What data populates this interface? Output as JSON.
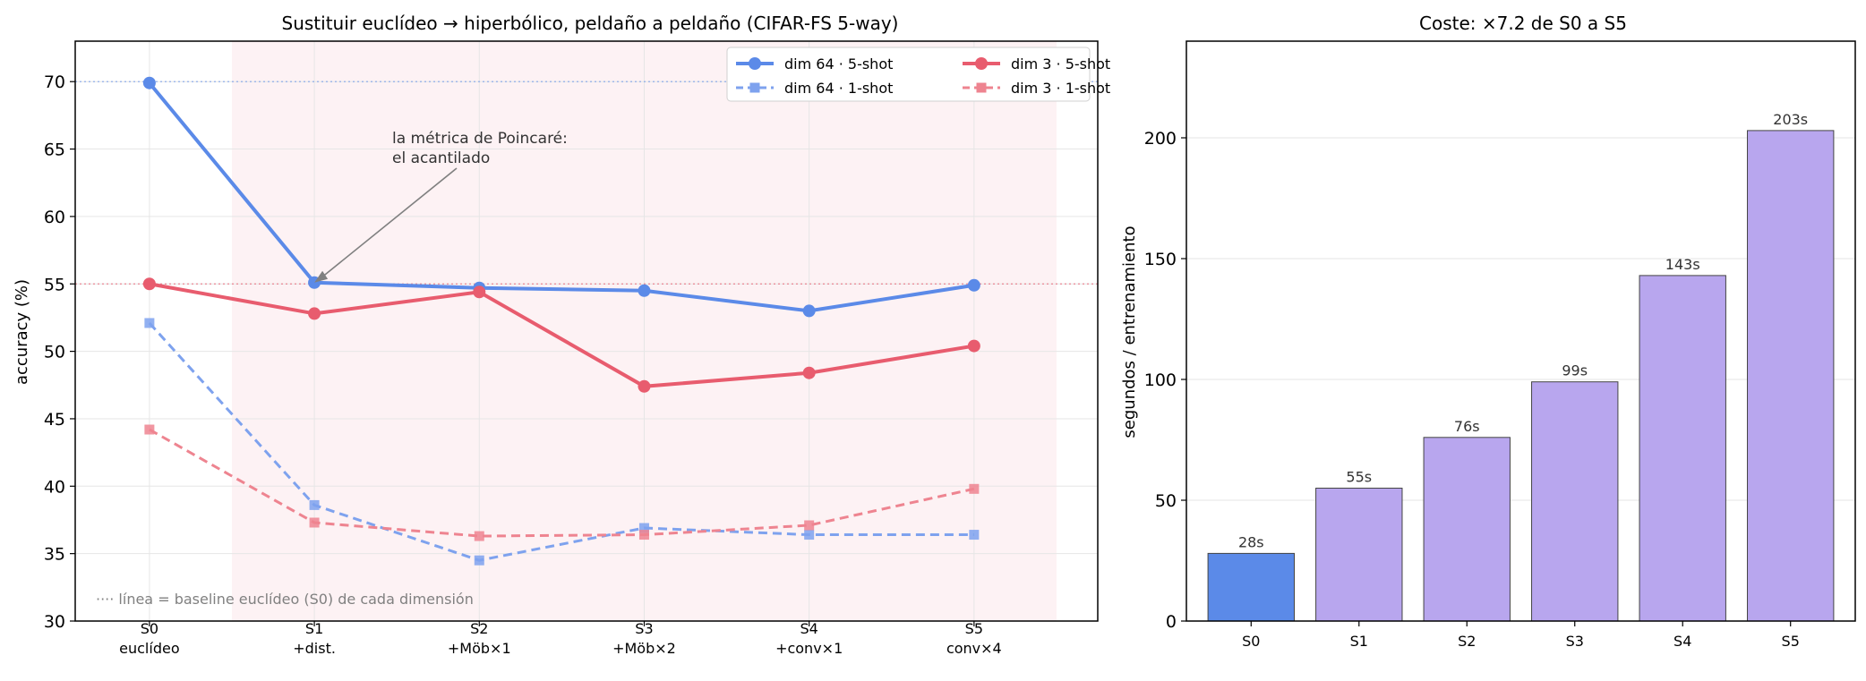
{
  "chart_data": [
    {
      "type": "line",
      "title": "Sustituir euclídeo → hiperbólico, peldaño a peldaño (CIFAR-FS 5-way)",
      "xlabel": "",
      "ylabel": "accuracy (%)",
      "categories": [
        "S0\neuclídeo",
        "S1\n+dist.",
        "S2\n+Möb×1",
        "S3\n+Möb×2",
        "S4\n+conv×1",
        "S5\nconv×4"
      ],
      "ylim": [
        30,
        73
      ],
      "yticks": [
        30,
        35,
        40,
        45,
        50,
        55,
        60,
        65,
        70
      ],
      "grid": true,
      "legend": "top-right",
      "series": [
        {
          "name": "dim 64 · 5-shot",
          "values": [
            69.9,
            55.1,
            54.7,
            54.5,
            53.0,
            54.9
          ],
          "color": "#5b8ae8",
          "style": "solid",
          "marker": "circle"
        },
        {
          "name": "dim 64 · 1-shot",
          "values": [
            52.1,
            38.6,
            34.5,
            36.9,
            36.4,
            36.4
          ],
          "color": "#7ea2ee",
          "style": "dashed",
          "marker": "square"
        },
        {
          "name": "dim 3 · 5-shot",
          "values": [
            55.0,
            52.8,
            54.4,
            47.4,
            48.4,
            50.4
          ],
          "color": "#e85c6e",
          "style": "solid",
          "marker": "circle"
        },
        {
          "name": "dim 3 · 1-shot",
          "values": [
            44.2,
            37.3,
            36.3,
            36.4,
            37.1,
            39.8
          ],
          "color": "#ee8490",
          "style": "dashed",
          "marker": "square"
        }
      ],
      "reference_lines": [
        {
          "y": 70,
          "color": "#5b8ae8"
        },
        {
          "y": 55,
          "color": "#e85c6e"
        }
      ],
      "shaded_region": {
        "from_category": 0.5,
        "to_category": 5.5,
        "color": "#fdf2f4"
      },
      "annotation": {
        "text": [
          "la métrica de Poincaré:",
          "el acantilado"
        ],
        "points_to": {
          "category": 1,
          "y": 55.1
        }
      },
      "footnote": "···· línea = baseline euclídeo (S0) de cada dimensión"
    },
    {
      "type": "bar",
      "title": "Coste: ×7.2 de S0 a S5",
      "xlabel": "",
      "ylabel": "segundos / entrenamiento",
      "categories": [
        "S0",
        "S1",
        "S2",
        "S3",
        "S4",
        "S5"
      ],
      "values": [
        28,
        55,
        76,
        99,
        143,
        203
      ],
      "data_labels": [
        "28s",
        "55s",
        "76s",
        "99s",
        "143s",
        "203s"
      ],
      "colors": [
        "#5b8ae8",
        "#b8a6ee",
        "#b8a6ee",
        "#b8a6ee",
        "#b8a6ee",
        "#b8a6ee"
      ],
      "ylim": [
        0,
        240
      ],
      "yticks": [
        0,
        50,
        100,
        150,
        200
      ],
      "grid": true
    }
  ]
}
